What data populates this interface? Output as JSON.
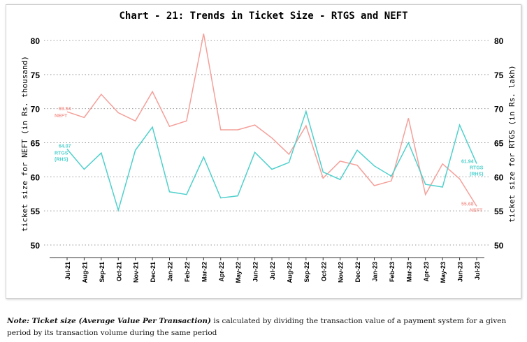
{
  "chart_data": {
    "type": "line",
    "title": "Chart - 21: Trends in Ticket Size - RTGS and NEFT",
    "ylabel_left": "ticket size for NEFT (in Rs. thousand)",
    "ylabel_right": "ticket size for RTGS (in Rs. lakh)",
    "ylim": [
      50,
      80
    ],
    "yticks": [
      50,
      55,
      60,
      65,
      70,
      75,
      80
    ],
    "grid": "horizontal dotted",
    "categories": [
      "Jul-21",
      "Aug-21",
      "Sep-21",
      "Oct-21",
      "Nov-21",
      "Dec-21",
      "Jan-22",
      "Feb-22",
      "Mar-22",
      "Apr-22",
      "May-22",
      "Jun-22",
      "Jul-22",
      "Aug-22",
      "Sep-22",
      "Oct-22",
      "Nov-22",
      "Dec-22",
      "Jan-23",
      "Feb-23",
      "Mar-23",
      "Apr-23",
      "May-23",
      "Jun-23",
      "Jul-23"
    ],
    "series": [
      {
        "name": "NEFT",
        "axis": "left",
        "color": "#f4a09a",
        "values": [
          69.54,
          68.7,
          72.1,
          69.4,
          68.2,
          72.5,
          67.4,
          68.2,
          81.0,
          66.9,
          66.9,
          67.6,
          65.7,
          63.3,
          67.5,
          59.8,
          62.3,
          61.7,
          58.7,
          59.4,
          68.6,
          57.4,
          61.9,
          59.7,
          55.68
        ],
        "start_label": "69.54",
        "end_label": "55.68",
        "tag": "NEFT"
      },
      {
        "name": "RTGS (RHS)",
        "axis": "right",
        "color": "#4fd0cc",
        "values": [
          64.07,
          61.1,
          63.5,
          55.1,
          63.9,
          67.3,
          57.8,
          57.4,
          62.9,
          56.9,
          57.2,
          63.6,
          61.1,
          62.1,
          69.6,
          60.7,
          59.6,
          63.9,
          61.6,
          60.1,
          65.0,
          58.9,
          58.5,
          67.6,
          61.94
        ],
        "start_label": "64.07",
        "end_label": "61.94",
        "tag": "RTGS",
        "tag2": "(RHS)"
      }
    ]
  },
  "note": {
    "bold": "Note: Ticket size (Average Value Per Transaction)",
    "rest": " is calculated by dividing the transaction value of a payment system for a given period by its transaction volume during the same period"
  }
}
